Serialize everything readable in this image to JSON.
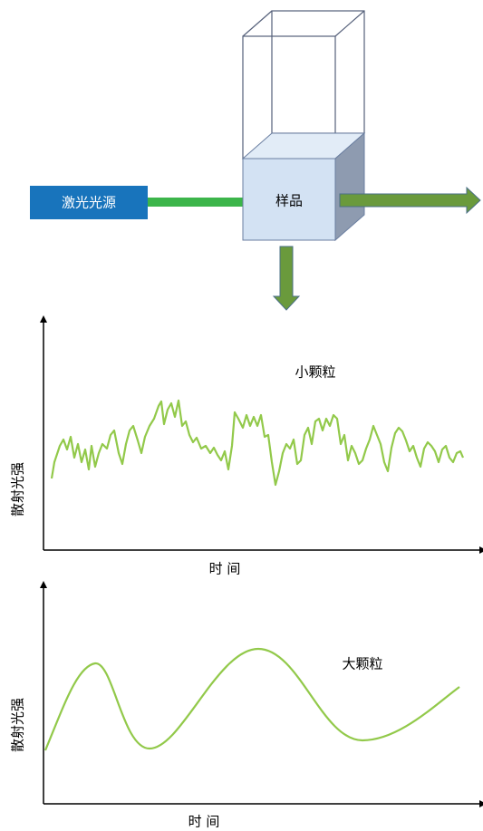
{
  "source": {
    "label": "激光光源"
  },
  "sample": {
    "label": "样品"
  },
  "charts": [
    {
      "label": "小颗粒",
      "y_label": "散射光强",
      "x_label": "时 间"
    },
    {
      "label": "大颗粒",
      "y_label": "散射光强",
      "x_label": "时 间"
    }
  ]
}
